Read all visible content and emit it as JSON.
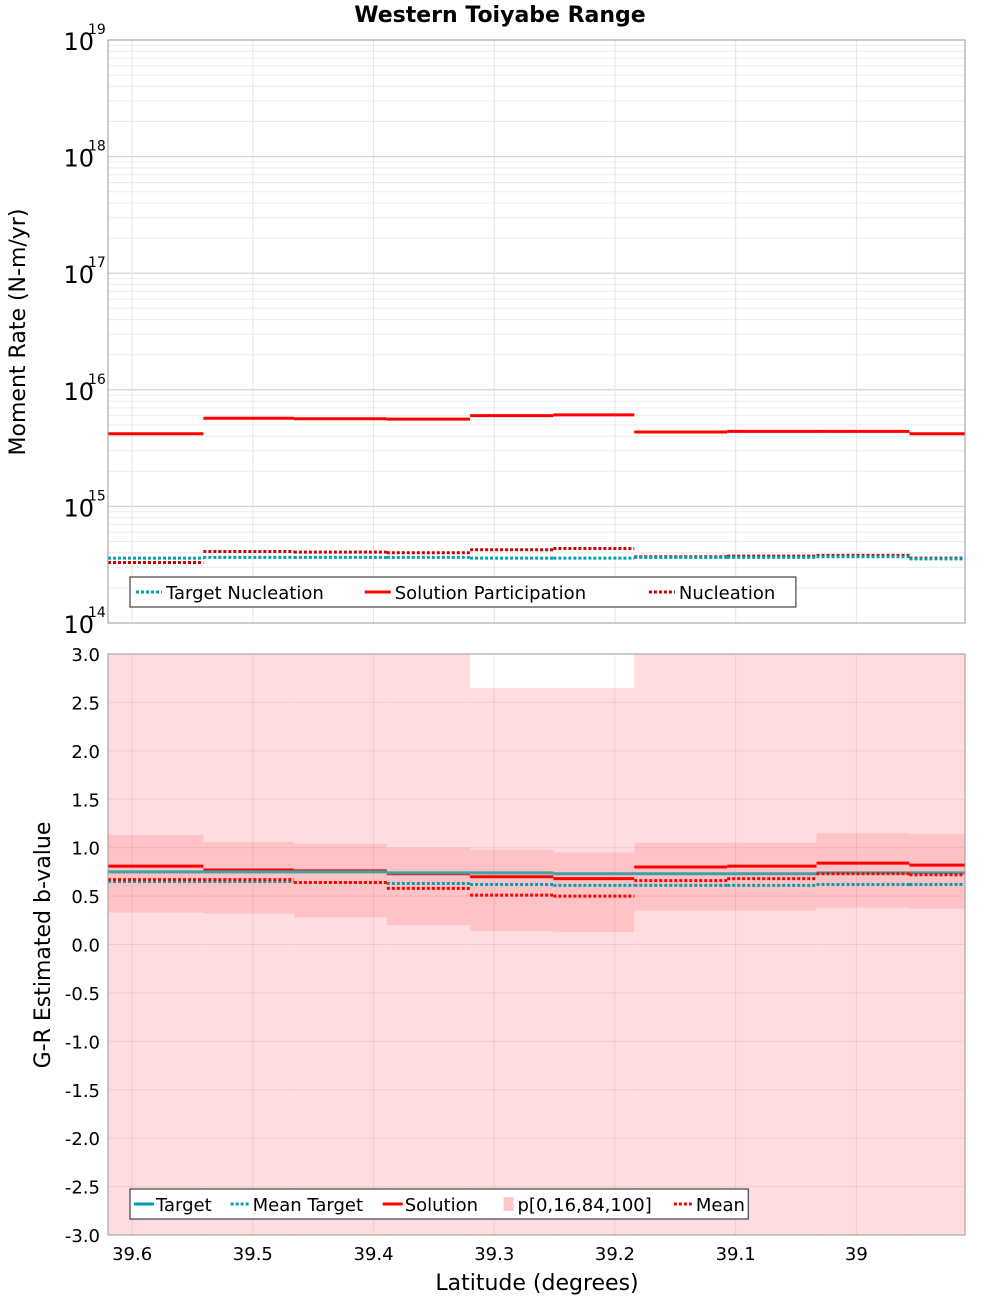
{
  "chart_data": [
    {
      "type": "line",
      "title": "Western Toiyabe Range",
      "ylabel": "Moment Rate (N-m/yr)",
      "xlabel": "",
      "yscale": "log",
      "ylim": [
        100000000000000.0,
        1e+19
      ],
      "xlim": [
        39.62,
        38.91
      ],
      "x_reversed": true,
      "grid": true,
      "y_tick_base": "10",
      "y_tick_exponents": [
        "14",
        "15",
        "16",
        "17",
        "18",
        "19"
      ],
      "legend": {
        "placement": "bottom-left",
        "entries": [
          {
            "label": "Target Nucleation",
            "style": "dotted",
            "color": "#00a0b0"
          },
          {
            "label": "Solution Participation",
            "style": "solid",
            "color": "#ff0000"
          },
          {
            "label": "Nucleation",
            "style": "dotted",
            "color": "#cc0000"
          }
        ]
      },
      "bin_edges": [
        39.62,
        39.541,
        39.466,
        39.389,
        39.32,
        39.251,
        39.184,
        39.107,
        39.033,
        38.956,
        38.91
      ],
      "series": [
        {
          "name": "Solution Participation",
          "color": "#ff0000",
          "style": "solid",
          "values": [
            4200000000000000.0,
            5700000000000000.0,
            5650000000000000.0,
            5600000000000000.0,
            6000000000000000.0,
            6100000000000000.0,
            4350000000000000.0,
            4400000000000000.0,
            4400000000000000.0,
            4200000000000000.0
          ]
        },
        {
          "name": "Nucleation",
          "color": "#cc0000",
          "style": "dotted",
          "values": [
            330000000000000.0,
            410000000000000.0,
            405000000000000.0,
            400000000000000.0,
            425000000000000.0,
            435000000000000.0,
            370000000000000.0,
            375000000000000.0,
            380000000000000.0,
            360000000000000.0
          ]
        },
        {
          "name": "Target Nucleation",
          "color": "#00a0b0",
          "style": "dotted",
          "values": [
            360000000000000.0,
            365000000000000.0,
            365000000000000.0,
            365000000000000.0,
            360000000000000.0,
            360000000000000.0,
            365000000000000.0,
            365000000000000.0,
            370000000000000.0,
            355000000000000.0
          ]
        }
      ]
    },
    {
      "type": "line",
      "title": "",
      "ylabel": "G-R Estimated b-value",
      "xlabel": "Latitude (degrees)",
      "ylim": [
        -3.0,
        3.0
      ],
      "xlim": [
        39.62,
        38.91
      ],
      "x_reversed": true,
      "grid": true,
      "y_ticks": [
        "3.0",
        "2.5",
        "2.0",
        "1.5",
        "1.0",
        "0.5",
        "0.0",
        "-0.5",
        "-1.0",
        "-1.5",
        "-2.0",
        "-2.5",
        "-3.0"
      ],
      "x_ticks": [
        "39.6",
        "39.5",
        "39.4",
        "39.3",
        "39.2",
        "39.1",
        "39"
      ],
      "legend": {
        "placement": "bottom-left",
        "entries": [
          {
            "label": "Target",
            "style": "solid",
            "color": "#00a0b0"
          },
          {
            "label": "Mean Target",
            "style": "dotted",
            "color": "#00a0b0"
          },
          {
            "label": "Solution",
            "style": "solid",
            "color": "#ff0000"
          },
          {
            "label": "p[0,16,84,100]",
            "style": "box",
            "color": "#ffc8c8"
          },
          {
            "label": "Mean",
            "style": "dotted",
            "color": "#ff0000"
          }
        ]
      },
      "bin_edges": [
        39.62,
        39.541,
        39.466,
        39.389,
        39.32,
        39.251,
        39.184,
        39.107,
        39.033,
        38.956,
        38.91
      ],
      "band_outer": {
        "low": [
          -3.0,
          -3.0,
          -3.0,
          -3.0,
          -3.0,
          -3.0,
          -3.0,
          -3.0,
          -3.0,
          -3.0
        ],
        "high": [
          3.0,
          3.0,
          3.0,
          3.0,
          2.65,
          2.65,
          3.0,
          3.0,
          3.0,
          3.0
        ]
      },
      "band_inner": {
        "low": [
          0.33,
          0.32,
          0.28,
          0.2,
          0.14,
          0.13,
          0.35,
          0.35,
          0.38,
          0.37
        ],
        "high": [
          1.13,
          1.06,
          1.04,
          1.0,
          0.98,
          0.95,
          1.05,
          1.05,
          1.15,
          1.14
        ]
      },
      "series": [
        {
          "name": "Solution",
          "color": "#ff0000",
          "style": "solid",
          "values": [
            0.81,
            0.77,
            0.76,
            0.73,
            0.7,
            0.68,
            0.8,
            0.81,
            0.84,
            0.82
          ]
        },
        {
          "name": "Target",
          "color": "#3aa3a3",
          "style": "solid",
          "values": [
            0.75,
            0.75,
            0.75,
            0.74,
            0.74,
            0.73,
            0.73,
            0.73,
            0.74,
            0.74
          ]
        },
        {
          "name": "Mean Target",
          "color": "#00a0b0",
          "style": "dotted",
          "values": [
            0.65,
            0.65,
            0.64,
            0.63,
            0.62,
            0.61,
            0.61,
            0.61,
            0.62,
            0.62
          ]
        },
        {
          "name": "Mean",
          "color": "#ff0000",
          "style": "dotted",
          "values": [
            0.67,
            0.67,
            0.64,
            0.58,
            0.51,
            0.5,
            0.66,
            0.68,
            0.73,
            0.72
          ]
        }
      ]
    }
  ]
}
